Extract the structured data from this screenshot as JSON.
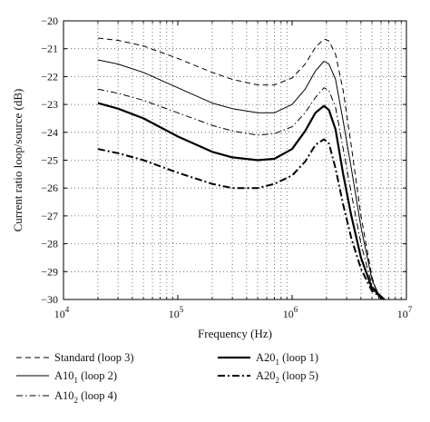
{
  "chart_data": {
    "type": "line",
    "title": "",
    "xlabel": "Frequency (Hz)",
    "ylabel": "Current ratio loop/source (dB)",
    "xscale": "log",
    "xlim": [
      10000,
      10000000
    ],
    "ylim": [
      -30,
      -20
    ],
    "grid": true,
    "grid_style": "dotted",
    "x_ticks": [
      {
        "value": 10000,
        "base": "10",
        "exp": "4"
      },
      {
        "value": 100000,
        "base": "10",
        "exp": "5"
      },
      {
        "value": 1000000,
        "base": "10",
        "exp": "6"
      },
      {
        "value": 10000000,
        "base": "10",
        "exp": "7"
      }
    ],
    "y_ticks": [
      {
        "value": -20,
        "label": "−20"
      },
      {
        "value": -21,
        "label": "−21"
      },
      {
        "value": -22,
        "label": "−22"
      },
      {
        "value": -23,
        "label": "−23"
      },
      {
        "value": -24,
        "label": "−24"
      },
      {
        "value": -25,
        "label": "−25"
      },
      {
        "value": -26,
        "label": "−26"
      },
      {
        "value": -27,
        "label": "−27"
      },
      {
        "value": -28,
        "label": "−28"
      },
      {
        "value": -29,
        "label": "−29"
      },
      {
        "value": -30,
        "label": "−30"
      }
    ],
    "legend_position": "bottom",
    "series": [
      {
        "name": "Standard (loop 3)",
        "legend": {
          "base": "Standard (loop 3)",
          "sub": "",
          "rest": ""
        },
        "dash": "6,4",
        "width": 1,
        "x": [
          20000,
          30000,
          50000,
          100000,
          200000,
          300000,
          500000,
          700000,
          1000000,
          1300000,
          1600000,
          1900000,
          2100000,
          2400000,
          2800000,
          3300000,
          4000000,
          5000000,
          5800000
        ],
        "y": [
          -20.62,
          -20.7,
          -20.9,
          -21.35,
          -21.85,
          -22.1,
          -22.3,
          -22.3,
          -22.05,
          -21.55,
          -20.95,
          -20.65,
          -20.72,
          -21.2,
          -22.5,
          -24.5,
          -27.0,
          -29.2,
          -30.0
        ]
      },
      {
        "name": "A10_1 (loop 2)",
        "legend": {
          "base": "A10",
          "sub": "1",
          "rest": " (loop 2)"
        },
        "dash": "",
        "width": 1,
        "x": [
          20000,
          30000,
          50000,
          100000,
          200000,
          300000,
          500000,
          700000,
          1000000,
          1300000,
          1600000,
          1900000,
          2100000,
          2400000,
          2800000,
          3300000,
          4000000,
          5000000,
          6000000
        ],
        "y": [
          -21.4,
          -21.55,
          -21.85,
          -22.4,
          -22.95,
          -23.15,
          -23.3,
          -23.3,
          -23.0,
          -22.45,
          -21.8,
          -21.45,
          -21.55,
          -22.1,
          -23.6,
          -25.3,
          -27.4,
          -29.3,
          -30.0
        ]
      },
      {
        "name": "A10_2 (loop 4)",
        "legend": {
          "base": "A10",
          "sub": "2",
          "rest": " (loop 4)"
        },
        "dash": "7,3,1.5,3",
        "width": 1,
        "x": [
          20000,
          30000,
          50000,
          100000,
          200000,
          300000,
          500000,
          700000,
          1000000,
          1300000,
          1600000,
          1900000,
          2100000,
          2400000,
          2800000,
          3300000,
          4000000,
          5000000,
          6200000
        ],
        "y": [
          -22.45,
          -22.6,
          -22.85,
          -23.3,
          -23.75,
          -23.95,
          -24.1,
          -24.05,
          -23.8,
          -23.3,
          -22.75,
          -22.4,
          -22.5,
          -23.1,
          -24.6,
          -26.2,
          -28.0,
          -29.5,
          -30.0
        ]
      },
      {
        "name": "A20_1 (loop 1)",
        "legend": {
          "base": "A20",
          "sub": "1",
          "rest": " (loop 1)"
        },
        "dash": "",
        "width": 2.2,
        "x": [
          20000,
          30000,
          50000,
          100000,
          200000,
          300000,
          500000,
          700000,
          1000000,
          1300000,
          1600000,
          1900000,
          2100000,
          2400000,
          2800000,
          3300000,
          4000000,
          5000000,
          6400000
        ],
        "y": [
          -22.95,
          -23.15,
          -23.5,
          -24.15,
          -24.7,
          -24.9,
          -25.0,
          -24.95,
          -24.6,
          -23.95,
          -23.3,
          -23.05,
          -23.2,
          -23.9,
          -25.5,
          -27.0,
          -28.5,
          -29.6,
          -30.0
        ]
      },
      {
        "name": "A20_2 (loop 5)",
        "legend": {
          "base": "A20",
          "sub": "2",
          "rest": " (loop 5)"
        },
        "dash": "8,3,2,3",
        "width": 2,
        "x": [
          20000,
          30000,
          50000,
          100000,
          200000,
          300000,
          500000,
          700000,
          1000000,
          1300000,
          1600000,
          1900000,
          2100000,
          2400000,
          2800000,
          3300000,
          4000000,
          5000000,
          6400000
        ],
        "y": [
          -24.6,
          -24.75,
          -25.0,
          -25.45,
          -25.85,
          -26.0,
          -26.0,
          -25.85,
          -25.55,
          -25.05,
          -24.45,
          -24.25,
          -24.4,
          -25.3,
          -26.6,
          -27.8,
          -28.9,
          -29.7,
          -30.0
        ]
      }
    ]
  }
}
